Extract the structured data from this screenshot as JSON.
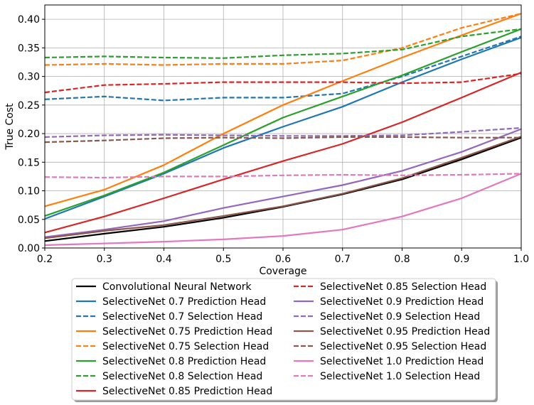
{
  "chart_data": {
    "type": "line",
    "xlabel": "Coverage",
    "ylabel": "True Cost",
    "xlim": [
      0.2,
      1.0
    ],
    "ylim": [
      0.0,
      0.425
    ],
    "x_ticks": [
      "0.2",
      "0.3",
      "0.4",
      "0.5",
      "0.6",
      "0.7",
      "0.8",
      "0.9",
      "1.0"
    ],
    "y_ticks": [
      "0.00",
      "0.05",
      "0.10",
      "0.15",
      "0.20",
      "0.25",
      "0.30",
      "0.35",
      "0.40"
    ],
    "grid": true,
    "legend_placement": "below plot, two columns",
    "x": [
      0.2,
      0.3,
      0.4,
      0.5,
      0.6,
      0.7,
      0.8,
      0.9,
      1.0
    ],
    "series": [
      {
        "name": "Convolutional Neural Network",
        "color": "#000000",
        "dash": false,
        "values": [
          0.012,
          0.025,
          0.037,
          0.053,
          0.072,
          0.094,
          0.12,
          0.155,
          0.193
        ]
      },
      {
        "name": "SelectiveNet 0.7 Prediction Head",
        "color": "#1f77b4",
        "dash": false,
        "values": [
          0.051,
          0.09,
          0.13,
          0.175,
          0.212,
          0.247,
          0.29,
          0.33,
          0.368
        ]
      },
      {
        "name": "SelectiveNet 0.7 Selection Head",
        "color": "#1f77b4",
        "dash": true,
        "values": [
          0.26,
          0.265,
          0.258,
          0.263,
          0.263,
          0.27,
          0.3,
          0.335,
          0.37
        ]
      },
      {
        "name": "SelectiveNet 0.75 Prediction Head",
        "color": "#ff7f0e",
        "dash": false,
        "values": [
          0.073,
          0.102,
          0.145,
          0.2,
          0.25,
          0.292,
          0.333,
          0.372,
          0.41
        ]
      },
      {
        "name": "SelectiveNet 0.75 Selection Head",
        "color": "#ff7f0e",
        "dash": true,
        "values": [
          0.32,
          0.322,
          0.32,
          0.322,
          0.322,
          0.328,
          0.35,
          0.385,
          0.41
        ]
      },
      {
        "name": "SelectiveNet 0.8 Prediction Head",
        "color": "#2ca02c",
        "dash": false,
        "values": [
          0.056,
          0.092,
          0.132,
          0.18,
          0.228,
          0.265,
          0.302,
          0.343,
          0.383
        ]
      },
      {
        "name": "SelectiveNet 0.8 Selection Head",
        "color": "#2ca02c",
        "dash": true,
        "values": [
          0.333,
          0.335,
          0.333,
          0.332,
          0.337,
          0.34,
          0.347,
          0.37,
          0.383
        ]
      },
      {
        "name": "SelectiveNet 0.85 Prediction Head",
        "color": "#d62728",
        "dash": false,
        "values": [
          0.027,
          0.055,
          0.087,
          0.12,
          0.152,
          0.182,
          0.22,
          0.263,
          0.307
        ]
      },
      {
        "name": "SelectiveNet 0.85 Selection Head",
        "color": "#d62728",
        "dash": true,
        "values": [
          0.272,
          0.285,
          0.287,
          0.29,
          0.29,
          0.29,
          0.288,
          0.29,
          0.305
        ]
      },
      {
        "name": "SelectiveNet 0.9 Prediction Head",
        "color": "#9467bd",
        "dash": false,
        "values": [
          0.019,
          0.032,
          0.047,
          0.07,
          0.09,
          0.11,
          0.135,
          0.168,
          0.208
        ]
      },
      {
        "name": "SelectiveNet 0.9 Selection Head",
        "color": "#9467bd",
        "dash": true,
        "values": [
          0.194,
          0.197,
          0.198,
          0.197,
          0.196,
          0.196,
          0.197,
          0.203,
          0.21
        ]
      },
      {
        "name": "SelectiveNet 0.95 Prediction Head",
        "color": "#8c564b",
        "dash": false,
        "values": [
          0.017,
          0.03,
          0.04,
          0.056,
          0.073,
          0.095,
          0.122,
          0.158,
          0.195
        ]
      },
      {
        "name": "SelectiveNet 0.95 Selection Head",
        "color": "#8c564b",
        "dash": true,
        "values": [
          0.185,
          0.188,
          0.192,
          0.193,
          0.192,
          0.194,
          0.194,
          0.193,
          0.193
        ]
      },
      {
        "name": "SelectiveNet 1.0 Prediction Head",
        "color": "#e377c2",
        "dash": false,
        "values": [
          0.005,
          0.008,
          0.011,
          0.015,
          0.021,
          0.032,
          0.055,
          0.087,
          0.13
        ]
      },
      {
        "name": "SelectiveNet 1.0 Selection Head",
        "color": "#e377c2",
        "dash": true,
        "values": [
          0.124,
          0.123,
          0.125,
          0.125,
          0.127,
          0.128,
          0.127,
          0.128,
          0.13
        ]
      }
    ]
  }
}
